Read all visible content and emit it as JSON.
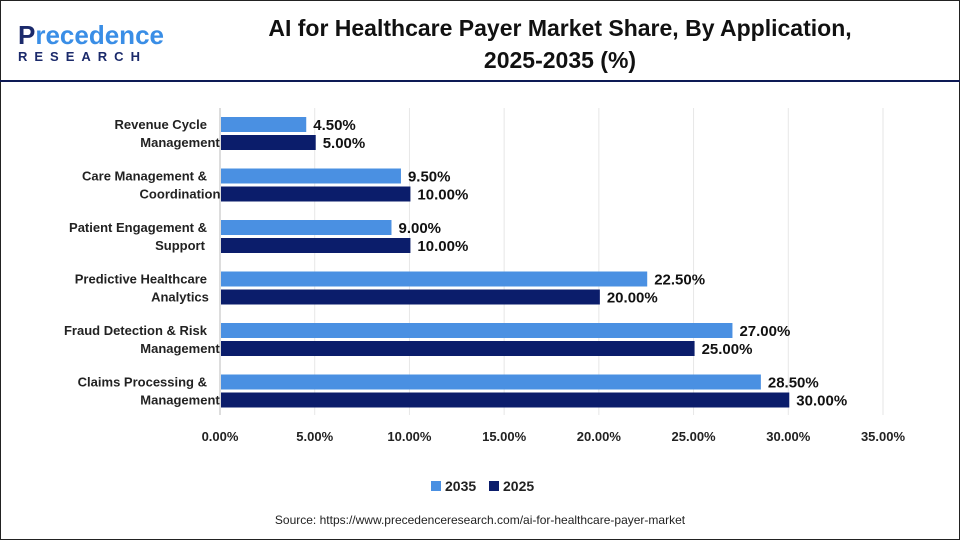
{
  "logo": {
    "text_main": "Precedence",
    "text_sub": "RESEARCH"
  },
  "title_line1": "AI for Healthcare Payer Market Share, By Application,",
  "title_line2": "2025-2035 (%)",
  "source": "Source: https://www.precedenceresearch.com/ai-for-healthcare-payer-market",
  "colors": {
    "s2035": "#4a90e2",
    "s2025": "#0b1d6b"
  },
  "chart_data": {
    "type": "bar",
    "orientation": "horizontal",
    "categories": [
      [
        "Revenue Cycle",
        "Management"
      ],
      [
        "Care Management &",
        "Coordination"
      ],
      [
        "Patient Engagement &",
        "Support"
      ],
      [
        "Predictive Healthcare",
        "Analytics"
      ],
      [
        "Fraud Detection & Risk",
        "Management"
      ],
      [
        "Claims Processing &",
        "Management"
      ]
    ],
    "series": [
      {
        "name": "2035",
        "values": [
          4.5,
          9.5,
          9.0,
          22.5,
          27.0,
          28.5
        ],
        "labels": [
          "4.50%",
          "9.50%",
          "9.00%",
          "22.50%",
          "27.00%",
          "28.50%"
        ]
      },
      {
        "name": "2025",
        "values": [
          5.0,
          10.0,
          10.0,
          20.0,
          25.0,
          30.0
        ],
        "labels": [
          "5.00%",
          "10.00%",
          "10.00%",
          "20.00%",
          "25.00%",
          "30.00%"
        ]
      }
    ],
    "xlim": [
      0,
      35
    ],
    "xticks": [
      "0.00%",
      "5.00%",
      "10.00%",
      "15.00%",
      "20.00%",
      "25.00%",
      "30.00%",
      "35.00%"
    ],
    "grid": true,
    "legend": "bottom"
  }
}
